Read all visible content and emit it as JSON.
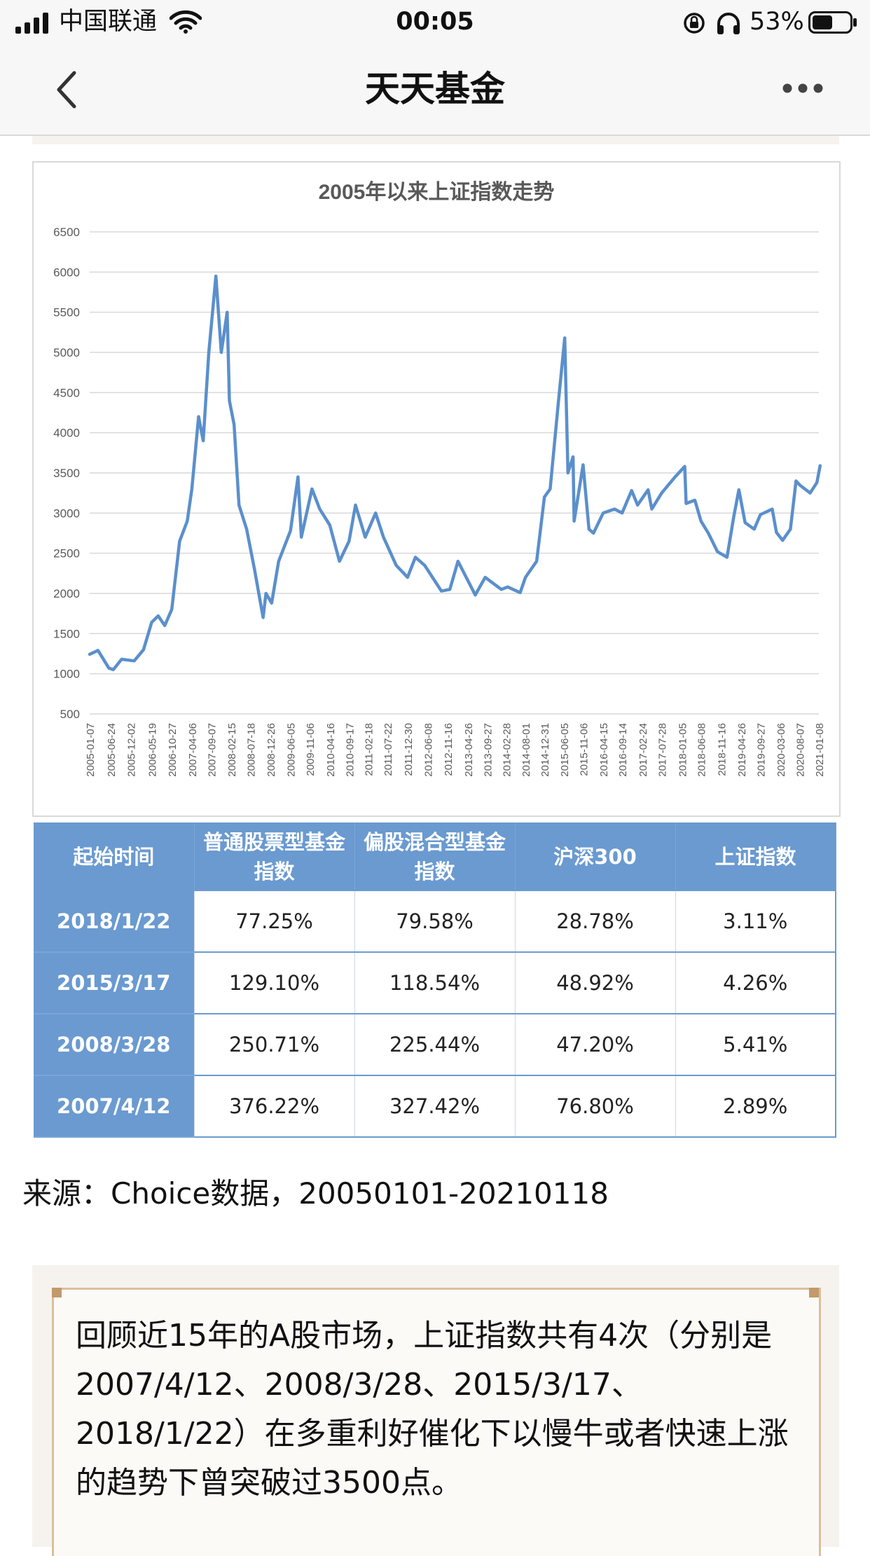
{
  "status_bar": {
    "carrier": "中国联通",
    "time": "00:05",
    "battery_pct": "53%",
    "battery_level": 0.53
  },
  "nav": {
    "title": "天天基金"
  },
  "chart_data": {
    "type": "line",
    "title": "2005年以来上证指数走势",
    "xlabel": "",
    "ylabel": "",
    "ylim": [
      500,
      6500
    ],
    "yticks": [
      500,
      1000,
      1500,
      2000,
      2500,
      3000,
      3500,
      4000,
      4500,
      5000,
      5500,
      6000,
      6500
    ],
    "grid": true,
    "legend": "none",
    "color": "#5b8fcc",
    "xticks": [
      "2005-01-07",
      "2005-06-24",
      "2005-12-02",
      "2006-05-19",
      "2006-10-27",
      "2007-04-06",
      "2007-09-07",
      "2008-02-15",
      "2008-07-18",
      "2008-12-26",
      "2009-06-05",
      "2009-11-06",
      "2010-04-16",
      "2010-09-17",
      "2011-02-18",
      "2011-07-22",
      "2011-12-30",
      "2012-06-08",
      "2012-11-16",
      "2013-04-26",
      "2013-09-27",
      "2014-02-28",
      "2014-08-01",
      "2014-12-31",
      "2015-06-05",
      "2015-11-06",
      "2016-04-15",
      "2016-09-14",
      "2017-02-24",
      "2017-07-28",
      "2018-01-05",
      "2018-06-08",
      "2018-11-16",
      "2019-04-26",
      "2019-09-27",
      "2020-03-06",
      "2020-08-07",
      "2021-01-08"
    ],
    "series": [
      {
        "x": [
          "2005-01-07",
          "2005-03-15",
          "2005-06-10",
          "2005-07-15",
          "2005-09-20",
          "2005-12-30",
          "2006-03-15",
          "2006-05-19",
          "2006-07-10",
          "2006-09-01",
          "2006-10-27",
          "2006-12-29",
          "2007-02-28",
          "2007-04-06",
          "2007-05-30",
          "2007-07-06",
          "2007-08-20",
          "2007-10-16",
          "2007-11-28",
          "2008-01-14",
          "2008-02-01",
          "2008-03-10",
          "2008-04-18",
          "2008-06-18",
          "2008-08-20",
          "2008-10-28",
          "2008-11-20",
          "2009-01-05",
          "2009-03-02",
          "2009-06-05",
          "2009-08-04",
          "2009-08-31",
          "2009-11-24",
          "2010-01-25",
          "2010-04-16",
          "2010-07-02",
          "2010-09-17",
          "2010-11-08",
          "2011-01-25",
          "2011-04-18",
          "2011-06-20",
          "2011-09-30",
          "2011-12-30",
          "2012-03-02",
          "2012-05-15",
          "2012-09-26",
          "2012-12-03",
          "2013-02-06",
          "2013-06-25",
          "2013-09-12",
          "2014-01-20",
          "2014-03-12",
          "2014-06-20",
          "2014-08-01",
          "2014-10-30",
          "2014-12-31",
          "2015-02-15",
          "2015-04-20",
          "2015-06-12",
          "2015-07-08",
          "2015-08-18",
          "2015-08-26",
          "2015-11-06",
          "2015-12-23",
          "2016-01-28",
          "2016-04-15",
          "2016-07-15",
          "2016-09-14",
          "2016-11-29",
          "2017-01-16",
          "2017-04-10",
          "2017-05-10",
          "2017-07-28",
          "2017-11-13",
          "2018-01-29",
          "2018-02-09",
          "2018-04-20",
          "2018-06-08",
          "2018-08-06",
          "2018-10-18",
          "2019-01-03",
          "2019-02-25",
          "2019-04-08",
          "2019-05-28",
          "2019-08-09",
          "2019-09-27",
          "2019-12-31",
          "2020-02-03",
          "2020-03-23",
          "2020-05-25",
          "2020-07-09",
          "2020-08-07",
          "2020-10-30",
          "2020-12-23",
          "2021-01-18"
        ],
        "y": [
          1242,
          1290,
          1070,
          1050,
          1180,
          1160,
          1300,
          1640,
          1720,
          1600,
          1800,
          2650,
          2900,
          3300,
          4200,
          3900,
          5000,
          5950,
          5000,
          5500,
          4400,
          4100,
          3100,
          2800,
          2300,
          1700,
          2000,
          1880,
          2400,
          2780,
          3450,
          2700,
          3300,
          3050,
          2850,
          2400,
          2650,
          3100,
          2700,
          3000,
          2700,
          2350,
          2200,
          2450,
          2350,
          2030,
          2050,
          2400,
          1980,
          2200,
          2050,
          2080,
          2010,
          2200,
          2400,
          3200,
          3300,
          4350,
          5180,
          3500,
          3700,
          2900,
          3600,
          2800,
          2750,
          3000,
          3050,
          3000,
          3280,
          3100,
          3290,
          3050,
          3250,
          3450,
          3580,
          3120,
          3160,
          2900,
          2750,
          2520,
          2450,
          2950,
          3290,
          2880,
          2800,
          2980,
          3050,
          2760,
          2660,
          2800,
          3400,
          3350,
          3250,
          3380,
          3590
        ]
      }
    ]
  },
  "table": {
    "headers": [
      "起始时间",
      "普通股票型基金指数",
      "偏股混合型基金指数",
      "沪深300",
      "上证指数"
    ],
    "rows": [
      [
        "2018/1/22",
        "77.25%",
        "79.58%",
        "28.78%",
        "3.11%"
      ],
      [
        "2015/3/17",
        "129.10%",
        "118.54%",
        "48.92%",
        "4.26%"
      ],
      [
        "2008/3/28",
        "250.71%",
        "225.44%",
        "47.20%",
        "5.41%"
      ],
      [
        "2007/4/12",
        "376.22%",
        "327.42%",
        "76.80%",
        "2.89%"
      ]
    ]
  },
  "source_text": "来源：Choice数据，20050101-20210118",
  "note_text": "回顾近15年的A股市场，上证指数共有4次（分别是2007/4/12、2008/3/28、2015/3/17、2018/1/22）在多重利好催化下以慢牛或者快速上涨的趋势下曾突破过3500点。"
}
